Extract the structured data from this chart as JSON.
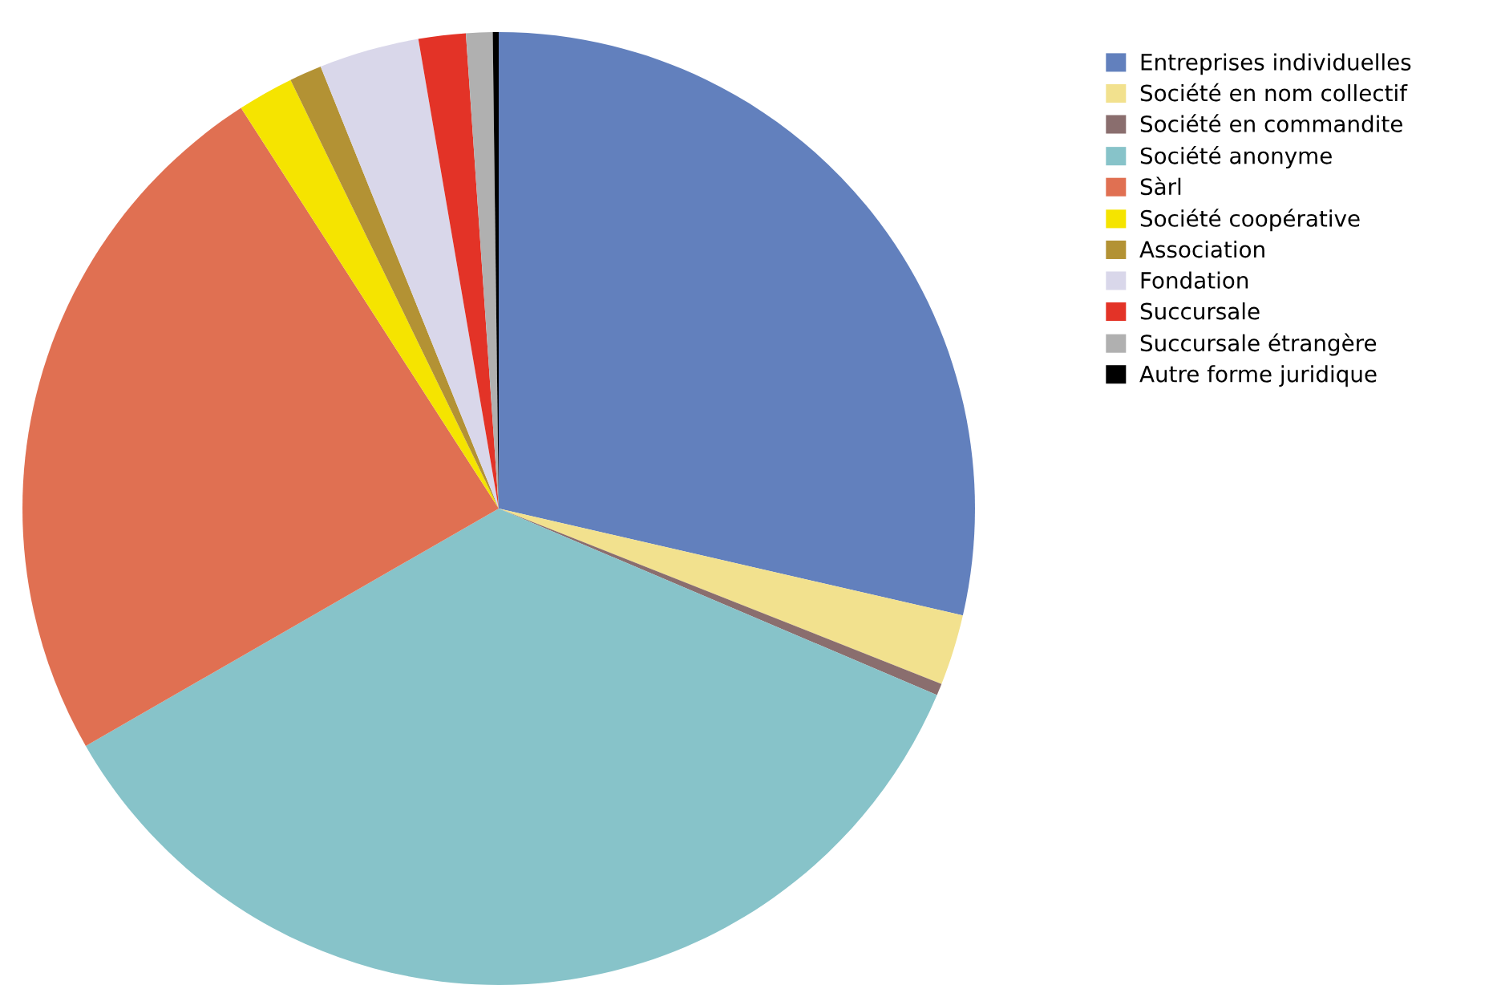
{
  "chart_data": {
    "type": "pie",
    "categories": [
      "Entreprises individuelles",
      "Société en nom collectif",
      "Société en commandite",
      "Société anonyme",
      "Sàrl",
      "Société coopérative",
      "Association",
      "Fondation",
      "Succursale",
      "Succursale étrangère",
      "Autre forme juridique"
    ],
    "values": [
      28.6,
      2.4,
      0.4,
      35.3,
      24.2,
      1.9,
      1.1,
      3.4,
      1.6,
      0.9,
      0.2
    ],
    "colors": [
      "#6280bd",
      "#f2e18e",
      "#8a6e6e",
      "#87c3c9",
      "#e07052",
      "#f5e400",
      "#b39234",
      "#d9d7ea",
      "#e33327",
      "#b0b0b0",
      "#000000"
    ],
    "legend": "right"
  }
}
